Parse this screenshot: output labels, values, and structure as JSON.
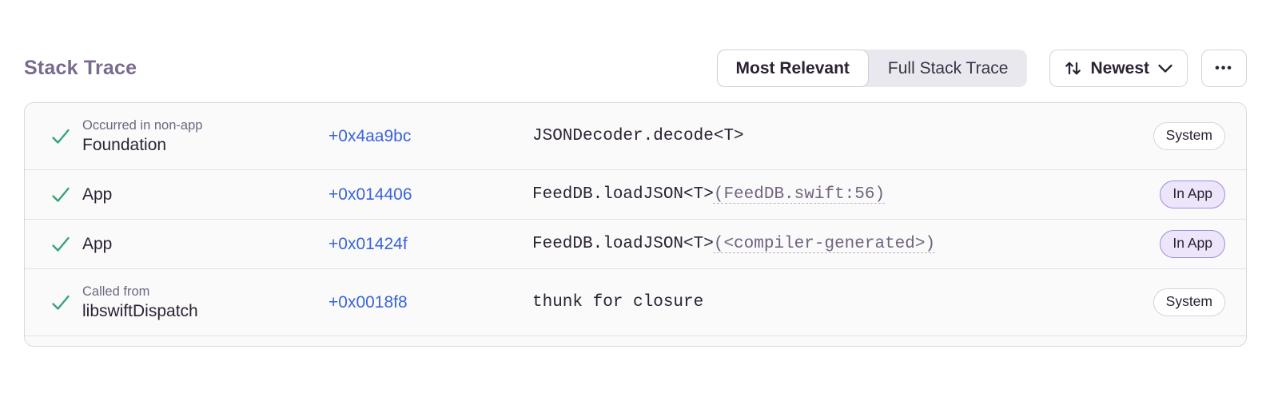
{
  "header": {
    "title": "Stack Trace",
    "view_toggle": [
      {
        "label": "Most Relevant",
        "active": true
      },
      {
        "label": "Full Stack Trace",
        "active": false
      }
    ],
    "sort_button": {
      "label": "Newest",
      "icon": "sort-arrows-icon"
    },
    "more_button": {
      "icon": "ellipsis-icon",
      "glyph": "•••"
    }
  },
  "colors": {
    "title_purple": "#796A8E",
    "text_dark": "#2B2233",
    "muted_purple": "#6F6680",
    "address_blue": "#3A63DC",
    "check_green": "#33A373",
    "row_bg": "#FAFAFB",
    "panel_border": "#D9D6E0",
    "in_app_badge_bg": "#EDE6FA",
    "in_app_badge_border": "#A18BE0",
    "system_badge_border": "#D6D3DD"
  },
  "stack_trace": {
    "frames": [
      {
        "status": "checked",
        "context": "Occurred in non-app",
        "module": "Foundation",
        "address": "+0x4aa9bc",
        "function": "JSONDecoder.decode<T>",
        "source": "",
        "badge": "System",
        "badge_type": "system"
      },
      {
        "status": "checked",
        "context": "",
        "module": "App",
        "address": "+0x014406",
        "function": "FeedDB.loadJSON<T>",
        "source": "(FeedDB.swift:56)",
        "badge": "In App",
        "badge_type": "in-app"
      },
      {
        "status": "checked",
        "context": "",
        "module": "App",
        "address": "+0x01424f",
        "function": "FeedDB.loadJSON<T>",
        "source": "(<compiler-generated>)",
        "badge": "In App",
        "badge_type": "in-app"
      },
      {
        "status": "checked",
        "context": "Called from",
        "module": "libswiftDispatch",
        "address": "+0x0018f8",
        "function": "thunk for closure",
        "source": "",
        "badge": "System",
        "badge_type": "system"
      }
    ]
  }
}
